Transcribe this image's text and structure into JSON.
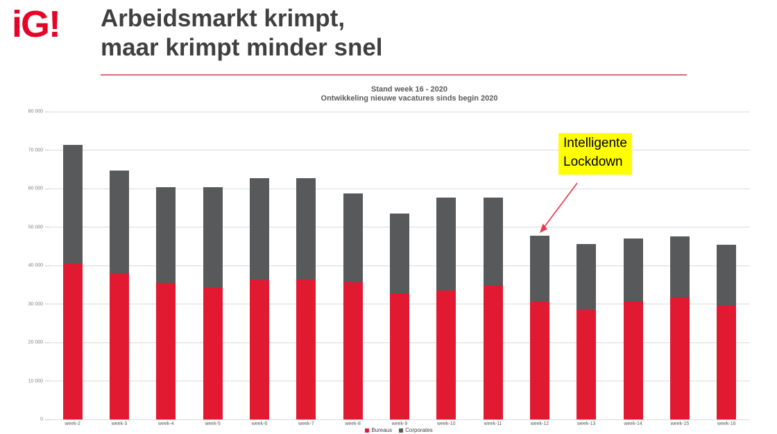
{
  "logo": {
    "text": "iG!",
    "color": "#e40428"
  },
  "header": {
    "title_line1": "Arbeidsmarkt krimpt,",
    "title_line2": "maar krimpt minder snel",
    "underline_color": "#e0667a"
  },
  "chart_data": {
    "type": "bar",
    "stacked": true,
    "title_line1": "Stand week 16 - 2020",
    "title_line2": "Ontwikkeling nieuwe vacatures sinds begin 2020",
    "categories": [
      "week-2",
      "week-3",
      "week-4",
      "week-5",
      "week-6",
      "week-7",
      "week-8",
      "week-9",
      "week-10",
      "week-11",
      "week-12",
      "week-13",
      "week-14",
      "week-15",
      "week-16"
    ],
    "series": [
      {
        "name": "Bureaus",
        "color": "#e11a32",
        "values": [
          40600,
          38100,
          35500,
          34300,
          36300,
          36400,
          35600,
          32800,
          33600,
          34800,
          30700,
          28500,
          30600,
          31800,
          29600
        ]
      },
      {
        "name": "Corporates",
        "color": "#58595b",
        "values": [
          30700,
          26600,
          24800,
          26000,
          26400,
          26300,
          23200,
          20700,
          24000,
          22800,
          17000,
          17000,
          16400,
          15800,
          15800
        ]
      }
    ],
    "ylim": [
      0,
      80000
    ],
    "ytick_step": 10000,
    "ytick_labels": [
      "0",
      "10 000",
      "20 000",
      "30 000",
      "40 000",
      "50 000",
      "60 000",
      "70 000",
      "80 000"
    ],
    "grid": true,
    "legend_position": "bottom-center"
  },
  "annotation": {
    "line1": "Intelligente",
    "line2": "Lockdown",
    "highlight_color": "#ffff00",
    "text_color": "#000000",
    "arrow_color": "#e8394d",
    "target_category": "week-12"
  }
}
